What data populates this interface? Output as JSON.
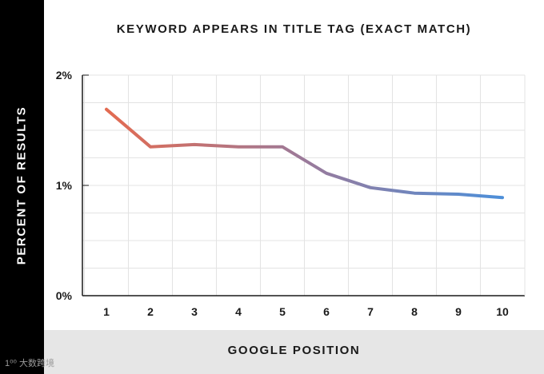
{
  "chart_data": {
    "type": "line",
    "title": "KEYWORD APPEARS IN TITLE TAG (EXACT MATCH)",
    "xlabel": "GOOGLE POSITION",
    "ylabel": "PERCENT OF RESULTS",
    "x": [
      1,
      2,
      3,
      4,
      5,
      6,
      7,
      8,
      9,
      10
    ],
    "y_ticks": [
      "0%",
      "1%",
      "2%"
    ],
    "ylim": [
      0,
      2
    ],
    "grid": true,
    "series": [
      {
        "values": [
          1.69,
          1.35,
          1.37,
          1.35,
          1.35,
          1.11,
          0.98,
          0.93,
          0.92,
          0.89
        ]
      }
    ],
    "colors": {
      "line_start": "#e36b51",
      "line_mid": "#9b7a9a",
      "line_end": "#4d8fd9"
    }
  },
  "watermark": "1⁰⁰ 大数跨境"
}
